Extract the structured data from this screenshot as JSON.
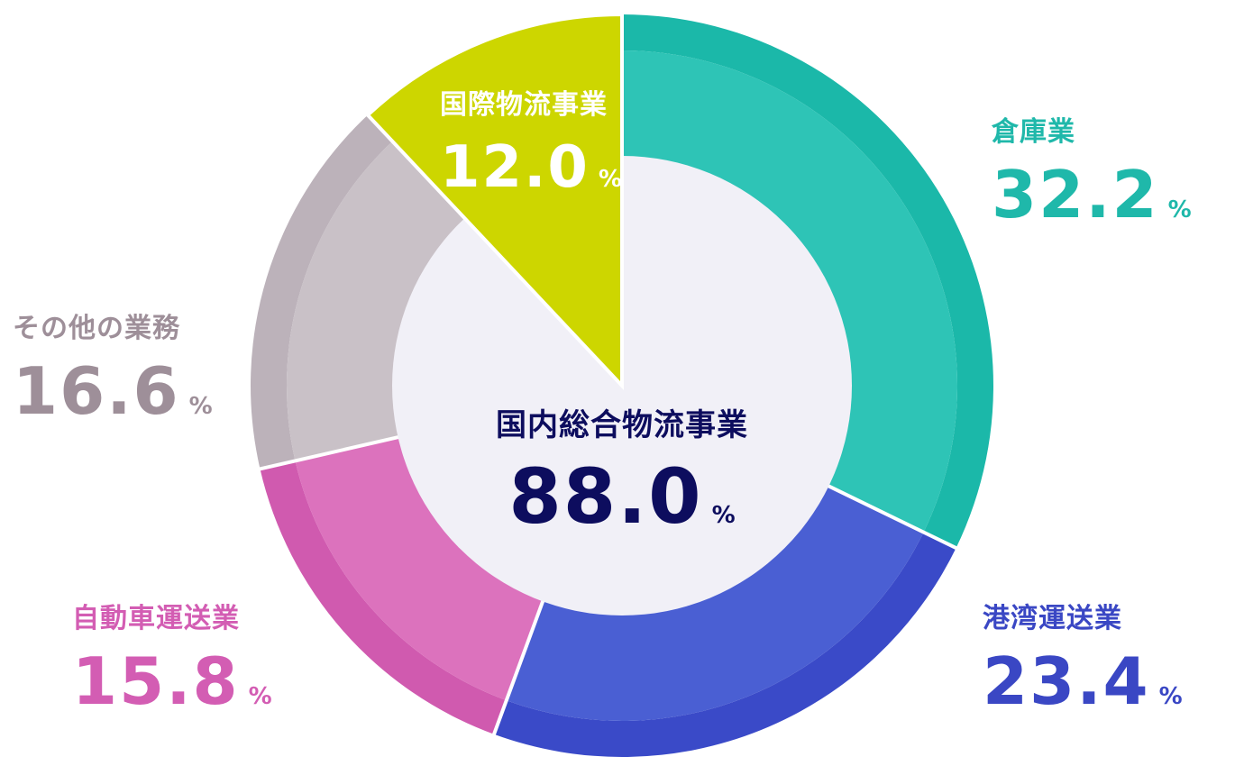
{
  "chart_data": {
    "type": "pie",
    "style": "donut",
    "center": {
      "label": "国内総合物流事業",
      "value": "88.0",
      "unit": "%",
      "color": "#0d0d5e"
    },
    "slices": [
      {
        "label": "倉庫業",
        "value": 32.2,
        "display": "32.2",
        "unit": "%",
        "color": "#2ec4b6",
        "outer_color": "#1bb8a9",
        "text_color": "#1fb8aa"
      },
      {
        "label": "港湾運送業",
        "value": 23.4,
        "display": "23.4",
        "unit": "%",
        "color": "#4a5fd3",
        "outer_color": "#3a4ac8",
        "text_color": "#3a47c4"
      },
      {
        "label": "自動車運送業",
        "value": 15.8,
        "display": "15.8",
        "unit": "%",
        "color": "#dc72bd",
        "outer_color": "#d05aaf",
        "text_color": "#d35db3"
      },
      {
        "label": "その他の業務",
        "value": 16.6,
        "display": "16.6",
        "unit": "%",
        "color": "#c9c1c7",
        "outer_color": "#bcb2ba",
        "text_color": "#9e8f99"
      },
      {
        "label": "国際物流事業",
        "value": 12.0,
        "display": "12.0",
        "unit": "%",
        "color": "#cdd600",
        "outer_color": "#cdd600",
        "text_color": "#ffffff",
        "wedge": true
      }
    ],
    "inner_color": "#f1f0f7",
    "legend": "none"
  }
}
